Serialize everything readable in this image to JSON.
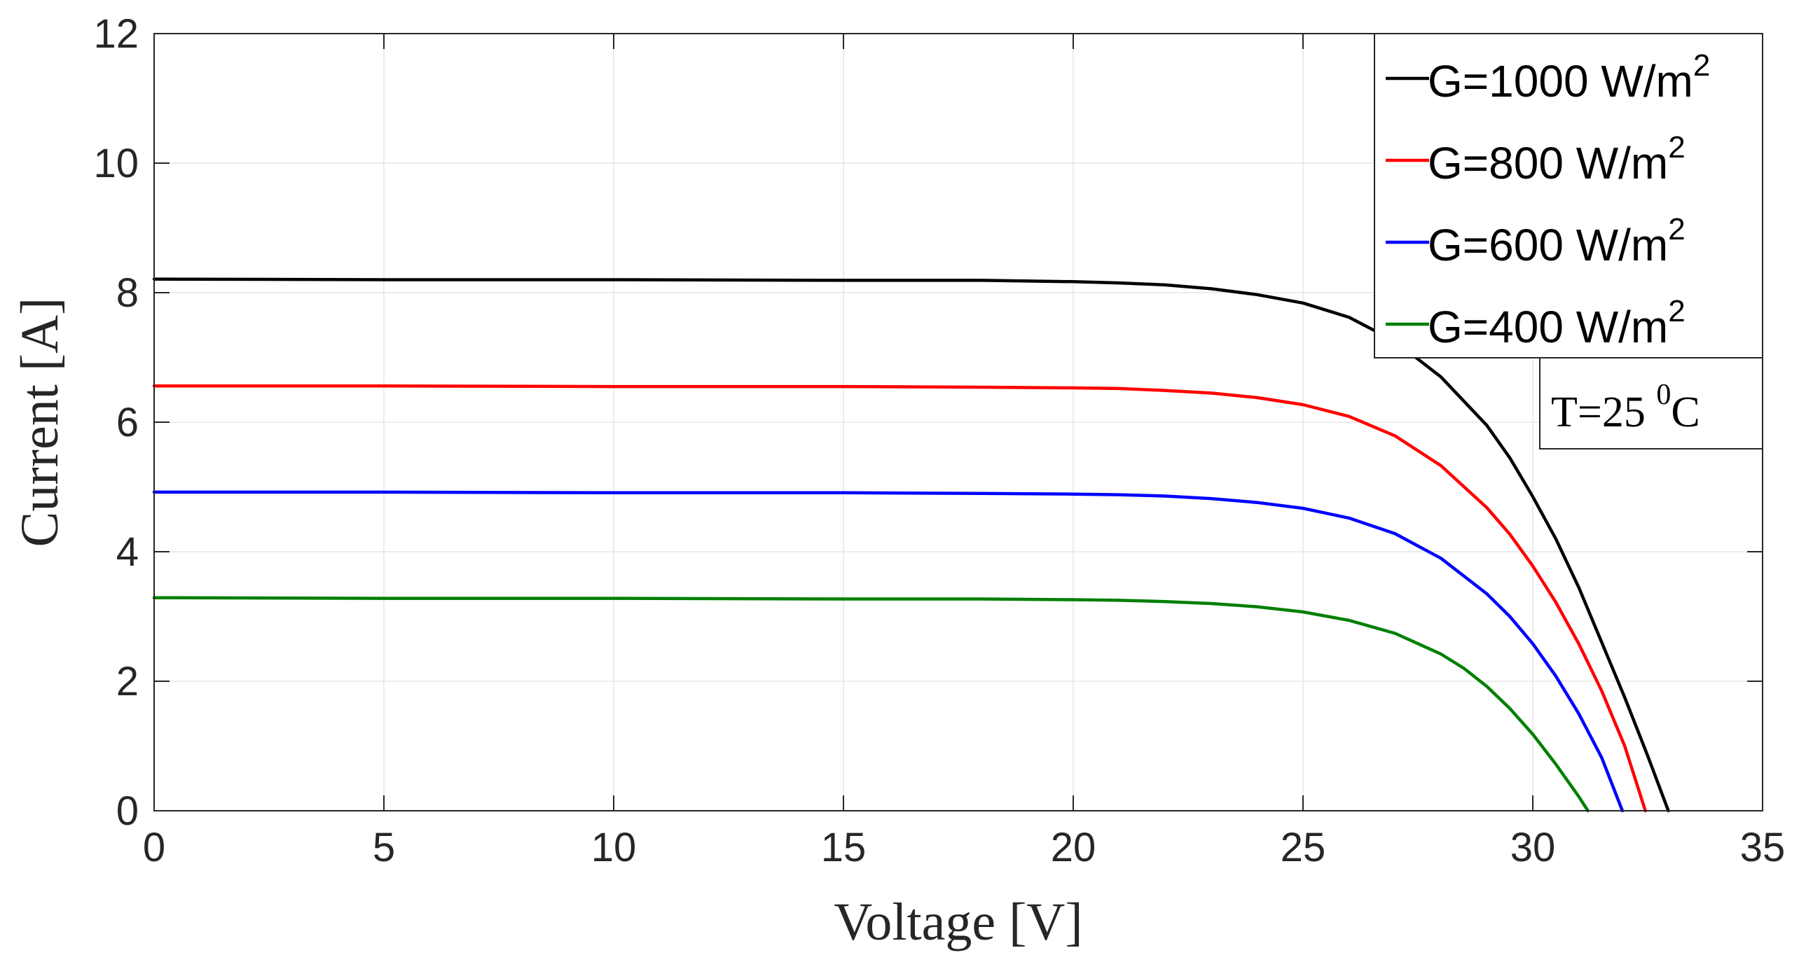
{
  "chart_data": {
    "type": "line",
    "title": "",
    "xlabel": "Voltage [V]",
    "ylabel": "Current [A]",
    "xlim": [
      0,
      35
    ],
    "ylim": [
      0,
      12
    ],
    "xticks": [
      0,
      5,
      10,
      15,
      20,
      25,
      30,
      35
    ],
    "yticks": [
      0,
      2,
      4,
      6,
      8,
      10,
      12
    ],
    "grid": true,
    "legend_position": "top-right",
    "annotation": {
      "text": "T=25 ",
      "sup": "0",
      "suffix": "C"
    },
    "series": [
      {
        "name": "G=1000 W/m",
        "name_sup": "2",
        "color": "#000000",
        "x": [
          0,
          5,
          10,
          15,
          18,
          20,
          21,
          22,
          23,
          24,
          25,
          26,
          27,
          28,
          29,
          29.5,
          30,
          30.5,
          31,
          31.5,
          32,
          32.5,
          32.95
        ],
        "y": [
          8.21,
          8.2,
          8.2,
          8.19,
          8.19,
          8.17,
          8.15,
          8.12,
          8.06,
          7.97,
          7.84,
          7.62,
          7.25,
          6.7,
          5.95,
          5.45,
          4.85,
          4.2,
          3.45,
          2.6,
          1.75,
          0.85,
          0.0
        ]
      },
      {
        "name": "G=800 W/m",
        "name_sup": "2",
        "color": "#ff0000",
        "x": [
          0,
          5,
          10,
          15,
          18,
          20,
          21,
          22,
          23,
          24,
          25,
          26,
          27,
          28,
          29,
          29.5,
          30,
          30.5,
          31,
          31.5,
          32,
          32.45
        ],
        "y": [
          6.56,
          6.56,
          6.55,
          6.55,
          6.54,
          6.53,
          6.52,
          6.49,
          6.45,
          6.38,
          6.27,
          6.09,
          5.79,
          5.33,
          4.68,
          4.27,
          3.78,
          3.22,
          2.58,
          1.85,
          1.0,
          0.0
        ]
      },
      {
        "name": "G=600 W/m",
        "name_sup": "2",
        "color": "#0000ff",
        "x": [
          0,
          5,
          10,
          15,
          18,
          20,
          21,
          22,
          23,
          24,
          25,
          26,
          27,
          28,
          29,
          29.5,
          30,
          30.5,
          31,
          31.5,
          31.95
        ],
        "y": [
          4.92,
          4.92,
          4.91,
          4.91,
          4.9,
          4.89,
          4.88,
          4.86,
          4.82,
          4.76,
          4.67,
          4.52,
          4.28,
          3.9,
          3.35,
          3.0,
          2.58,
          2.08,
          1.5,
          0.82,
          0.0
        ]
      },
      {
        "name": "G=400 W/m",
        "name_sup": "2",
        "color": "#007f00",
        "x": [
          0,
          5,
          10,
          15,
          18,
          20,
          21,
          22,
          23,
          24,
          25,
          26,
          27,
          28,
          28.5,
          29,
          29.5,
          30,
          30.5,
          31,
          31.2
        ],
        "y": [
          3.29,
          3.28,
          3.28,
          3.27,
          3.27,
          3.26,
          3.25,
          3.23,
          3.2,
          3.15,
          3.07,
          2.94,
          2.74,
          2.42,
          2.2,
          1.92,
          1.58,
          1.18,
          0.72,
          0.22,
          0.0
        ]
      }
    ]
  }
}
